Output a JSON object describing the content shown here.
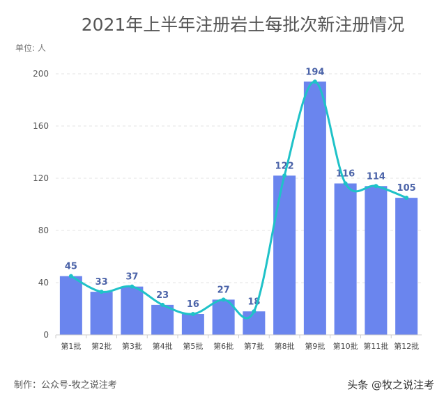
{
  "chart_data": {
    "type": "bar",
    "title": "2021年上半年注册岩土每批次新注册情况",
    "ylabel": "单位: 人",
    "xlabel": "",
    "categories": [
      "第1批",
      "第2批",
      "第3批",
      "第4批",
      "第5批",
      "第6批",
      "第7批",
      "第8批",
      "第9批",
      "第10批",
      "第11批",
      "第12批"
    ],
    "values": [
      45,
      33,
      37,
      23,
      16,
      27,
      18,
      122,
      194,
      116,
      114,
      105
    ],
    "overlay_line": "smooth line through bar values",
    "ylim": [
      0,
      200
    ],
    "yticks": [
      0,
      40,
      80,
      120,
      160,
      200
    ],
    "grid": true,
    "data_labels": true,
    "colors": {
      "bar": "#6a85ee",
      "line": "#1fc2c8",
      "label": "#4b63a8"
    }
  },
  "footer": "制作：公众号-牧之说注考",
  "watermark": "头条 @牧之说注考"
}
